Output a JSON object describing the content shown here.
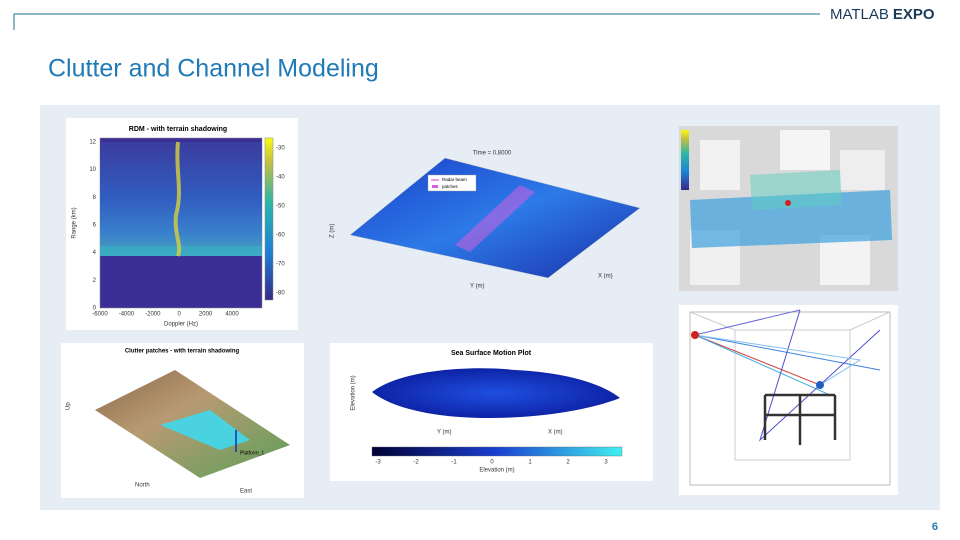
{
  "header": {
    "brand_light": "MATLAB",
    "brand_bold": "EXPO"
  },
  "title": "Clutter and Channel Modeling",
  "page_number": "6",
  "rdm": {
    "title": "RDM - with terrain shadowing",
    "x_label": "Doppler (Hz)",
    "y_label": "Range (km)",
    "x_ticks": [
      "-6000",
      "-4000",
      "-2000",
      "0",
      "2000",
      "4000"
    ],
    "y_ticks": [
      "0",
      "2",
      "4",
      "6",
      "8",
      "10",
      "12"
    ],
    "colorbar_ticks": [
      "-30",
      "-40",
      "-50",
      "-60",
      "-70",
      "-80"
    ]
  },
  "radar_beam": {
    "title": "Time = 0.8000",
    "legend": [
      "Radar beam",
      "patches"
    ],
    "x_label": "X (m)",
    "y_label": "Y (m)",
    "z_label": "Z (m)"
  },
  "terrain": {
    "title": "Clutter patches - with terrain shadowing",
    "x_label": "East",
    "y_label": "North",
    "z_label": "Up",
    "annotation": "Platform_1"
  },
  "sea_surface": {
    "title": "Sea Surface Motion Plot",
    "z_label": "Elevation (m)",
    "x_label": "X (m)",
    "y_label": "Y (m)",
    "colorbar_label": "Elevation (m)",
    "colorbar_ticks": [
      "-3",
      "-2",
      "-1",
      "0",
      "1",
      "2",
      "3"
    ]
  }
}
